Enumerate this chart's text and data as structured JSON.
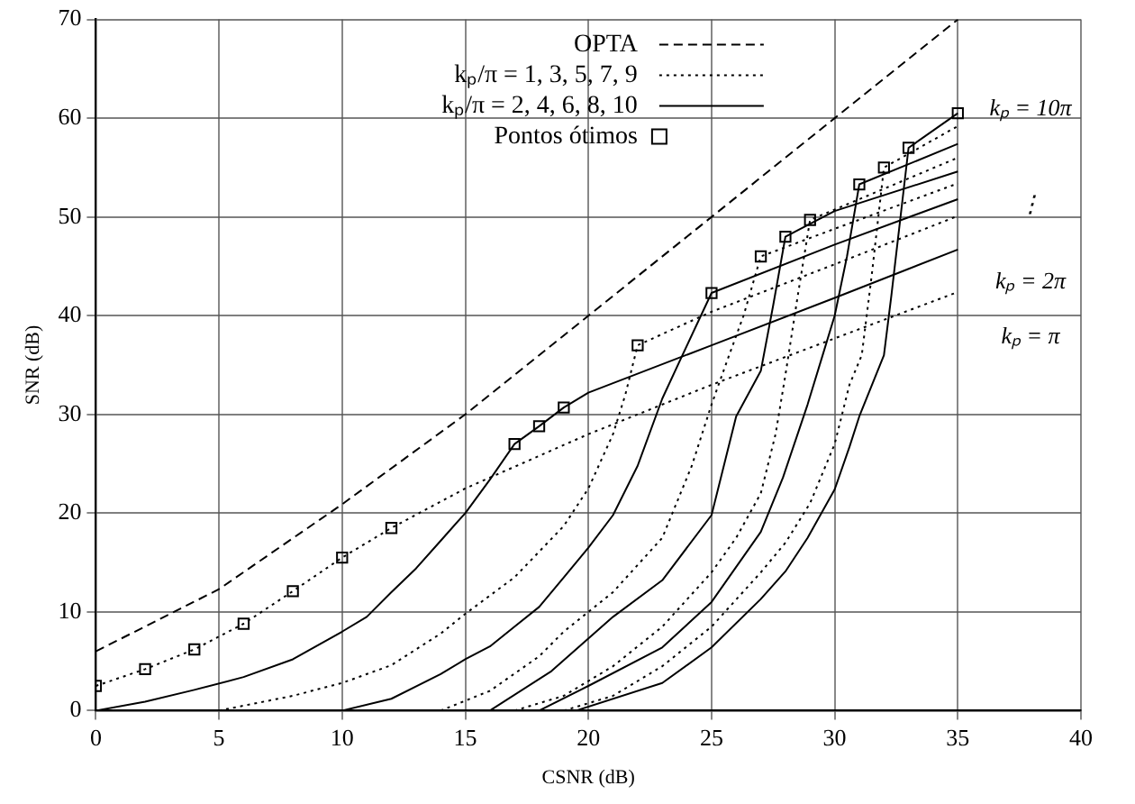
{
  "chart_data": {
    "type": "line",
    "xlabel": "CSNR (dB)",
    "ylabel": "SNR (dB)",
    "xlim": [
      0,
      40
    ],
    "xticks": [
      0,
      5,
      10,
      15,
      20,
      25,
      30,
      35,
      40
    ],
    "ylim": [
      0,
      70
    ],
    "yticks": [
      0,
      10,
      20,
      30,
      40,
      50,
      60,
      70
    ],
    "grid": true,
    "legend": "top",
    "marker": "none",
    "series": [
      {
        "name": "OPTA",
        "color": "#000000",
        "line_style": "dashed",
        "x": [
          0,
          5,
          10,
          15,
          20,
          25,
          30,
          35
        ],
        "values": [
          6,
          12.3,
          20.9,
          30,
          40,
          50,
          60,
          70
        ]
      },
      {
        "name": "kₚ/π = 1, 3, 5, 7, 9",
        "color": "#000000",
        "line_style": "dotted",
        "x": [
          0,
          2,
          4,
          6,
          8,
          10,
          12,
          15,
          20,
          25,
          30,
          35
        ],
        "values": [
          2.5,
          4.2,
          6.2,
          8.8,
          12.1,
          15.5,
          18.5,
          22.5,
          28,
          33,
          37.7,
          42.4
        ]
      },
      {
        "name": "kₚ/π = 2, 4, 6, 8, 10",
        "color": "#000000",
        "line_style": "solid",
        "x": [
          0,
          2,
          4,
          6,
          8,
          10,
          11,
          12,
          13,
          14,
          15,
          16,
          17,
          18,
          19,
          20,
          25,
          30,
          35
        ],
        "values": [
          0,
          0.9,
          2.1,
          3.4,
          5.2,
          8,
          9.5,
          12,
          14.4,
          17.2,
          20,
          23.4,
          27,
          28.8,
          30.7,
          32.2,
          37,
          41.8,
          46.7
        ]
      },
      {
        "color": "#000000",
        "line_style": "dotted",
        "x": [
          5,
          6,
          8,
          10,
          12,
          14,
          15,
          17,
          19,
          20,
          21,
          21.5,
          22,
          25,
          30,
          35
        ],
        "values": [
          0,
          0.5,
          1.5,
          2.8,
          4.6,
          7.8,
          9.8,
          13.5,
          18.7,
          22.5,
          28,
          32,
          37,
          40.4,
          45.2,
          50.1
        ]
      },
      {
        "color": "#000000",
        "line_style": "solid",
        "x": [
          10,
          12,
          14,
          15,
          16,
          17,
          18,
          19,
          20,
          21,
          22,
          23,
          23.8,
          25,
          30,
          35
        ],
        "values": [
          0,
          1.2,
          3.7,
          5.2,
          6.5,
          8.5,
          10.5,
          13.5,
          16.5,
          19.8,
          24.8,
          31.6,
          35.9,
          42.3,
          47.2,
          51.8
        ]
      },
      {
        "color": "#000000",
        "line_style": "dotted",
        "x": [
          14,
          16,
          18,
          19,
          21,
          23,
          24.2,
          25,
          25.7,
          26.3,
          27,
          30,
          35
        ],
        "values": [
          0,
          2,
          5.5,
          8,
          12,
          17.5,
          24.8,
          31,
          35.9,
          40,
          46,
          48.8,
          53.4
        ]
      },
      {
        "color": "#000000",
        "line_style": "solid",
        "x": [
          16,
          18.5,
          21,
          23,
          25,
          26,
          27,
          27.5,
          28,
          30,
          35
        ],
        "values": [
          0,
          4,
          9.5,
          13.2,
          19.8,
          29.8,
          34.4,
          41,
          48,
          50.6,
          54.6
        ]
      },
      {
        "color": "#000000",
        "line_style": "dotted",
        "x": [
          17,
          19,
          21,
          23,
          25,
          26,
          27,
          27.6,
          28,
          28.5,
          29,
          35
        ],
        "values": [
          0,
          1.5,
          4.5,
          8.5,
          14,
          17.5,
          22,
          28,
          34,
          42,
          49.7,
          56
        ]
      },
      {
        "color": "#000000",
        "line_style": "solid",
        "x": [
          18,
          20,
          23,
          25,
          27,
          27.9,
          28.9,
          29.5,
          30,
          30.5,
          31,
          35
        ],
        "values": [
          0,
          2.5,
          6.4,
          11,
          18.1,
          23.6,
          31,
          35.9,
          40,
          46,
          53.3,
          57.4
        ]
      },
      {
        "color": "#000000",
        "line_style": "dotted",
        "x": [
          19,
          21,
          23,
          25,
          27,
          28,
          29,
          30,
          30.6,
          31.1,
          31.5,
          32,
          35
        ],
        "values": [
          0,
          1.5,
          4.5,
          8.5,
          14,
          17,
          21,
          27,
          33,
          36,
          44,
          55,
          59.2
        ]
      },
      {
        "color": "#000000",
        "line_style": "solid",
        "x": [
          19.5,
          23,
          25,
          27,
          28,
          28.9,
          30,
          30.6,
          31,
          32,
          32.3,
          33,
          35
        ],
        "values": [
          0,
          2.8,
          6.4,
          11.3,
          14.1,
          17.5,
          22.4,
          26.7,
          29.8,
          36,
          42,
          57,
          60.5
        ]
      },
      {
        "name": "Pontos ótimos",
        "type": "scatter",
        "marker": "square",
        "color": "#000000",
        "x": [
          0,
          2,
          4,
          6,
          8,
          10,
          12,
          17,
          18,
          19,
          22,
          25,
          27,
          28,
          29,
          31,
          32,
          33,
          35
        ],
        "values": [
          2.5,
          4.2,
          6.2,
          8.8,
          12.1,
          15.5,
          18.5,
          27,
          28.8,
          30.7,
          37,
          42.3,
          46,
          48,
          49.7,
          53.3,
          55,
          57,
          60.5
        ]
      }
    ],
    "annotations": [
      "kₚ = 10π",
      "⋮",
      "kₚ = 2π",
      "kₚ = π"
    ]
  }
}
